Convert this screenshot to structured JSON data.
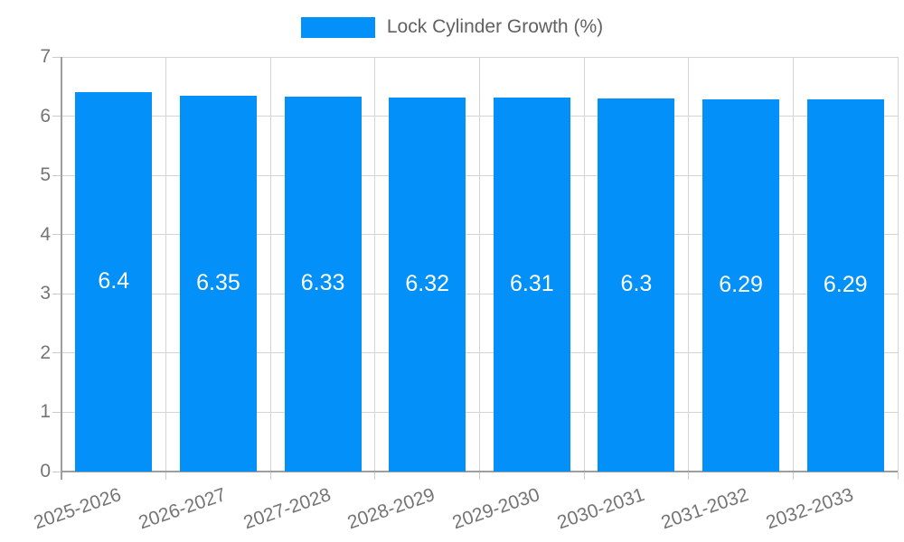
{
  "chart_data": {
    "type": "bar",
    "title": "Lock Cylinder Growth (%)",
    "categories": [
      "2025-2026",
      "2026-2027",
      "2027-2028",
      "2028-2029",
      "2029-2030",
      "2030-2031",
      "2031-2032",
      "2032-2033"
    ],
    "values": [
      6.4,
      6.35,
      6.33,
      6.32,
      6.31,
      6.3,
      6.29,
      6.29
    ],
    "bar_labels": [
      "6.4",
      "6.35",
      "6.33",
      "6.32",
      "6.31",
      "6.3",
      "6.29",
      "6.29"
    ],
    "xlabel": "",
    "ylabel": "",
    "ylim": [
      0,
      7
    ],
    "yticks": [
      0,
      1,
      2,
      3,
      4,
      5,
      6,
      7
    ],
    "grid": true,
    "legend_position": "top-center",
    "colors": {
      "bar": "#0490f9",
      "bar_label": "#ffffff",
      "axis_text": "#757575",
      "legend_text": "#616161",
      "grid_line": "#d4d4d4",
      "axis_line": "#9e9e9e",
      "background": "#ffffff"
    }
  }
}
